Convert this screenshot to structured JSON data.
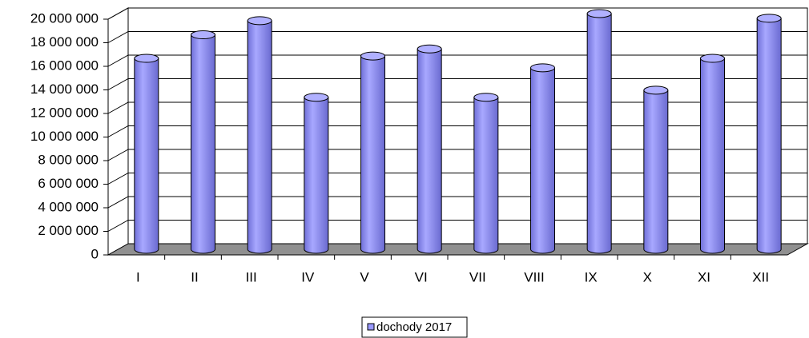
{
  "chart_data": {
    "type": "bar",
    "style": "3d-cylinder",
    "categories": [
      "I",
      "II",
      "III",
      "IV",
      "V",
      "VI",
      "VII",
      "VIII",
      "IX",
      "X",
      "XI",
      "XII"
    ],
    "series": [
      {
        "name": "dochody 2017",
        "color": "#9999ff",
        "values": [
          16200000,
          18200000,
          19400000,
          12900000,
          16400000,
          17000000,
          12900000,
          15400000,
          20000000,
          13500000,
          16200000,
          19600000
        ]
      }
    ],
    "ylim": [
      0,
      20000000
    ],
    "yticks": [
      {
        "value": 0,
        "label": "0"
      },
      {
        "value": 2000000,
        "label": "2 000 000"
      },
      {
        "value": 4000000,
        "label": "4 000 000"
      },
      {
        "value": 6000000,
        "label": "6 000 000"
      },
      {
        "value": 8000000,
        "label": "8 000 000"
      },
      {
        "value": 10000000,
        "label": "10 000 000"
      },
      {
        "value": 12000000,
        "label": "12 000 000"
      },
      {
        "value": 14000000,
        "label": "14 000 000"
      },
      {
        "value": 16000000,
        "label": "16 000 000"
      },
      {
        "value": 18000000,
        "label": "18 000 000"
      },
      {
        "value": 20000000,
        "label": "20 000 000"
      }
    ],
    "grid": true,
    "legend": "bottom"
  }
}
